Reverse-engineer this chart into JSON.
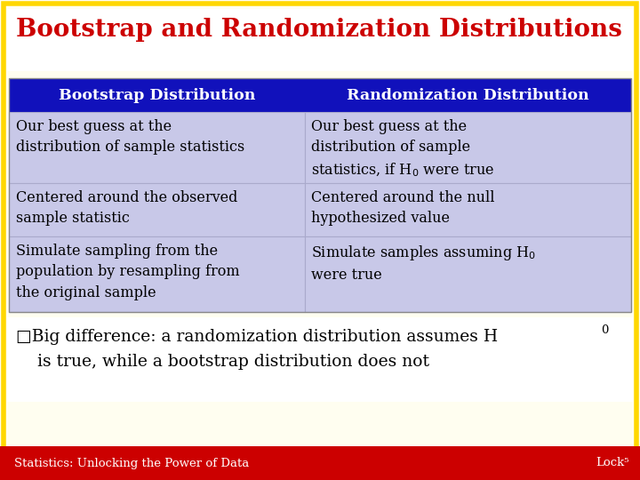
{
  "title": "Bootstrap and Randomization Distributions",
  "title_color": "#CC0000",
  "title_fontsize": 20,
  "bg_color": "#FFFEF0",
  "outer_border_color": "#FFD700",
  "header_bg": "#1111BB",
  "header_text_color": "#FFFFFF",
  "header_fontsize": 12.5,
  "cell_bg": "#C8C8E8",
  "cell_text_color": "#000000",
  "cell_fontsize": 11.5,
  "col1_header": "Bootstrap Distribution",
  "col2_header": "Randomization Distribution",
  "rows": [
    [
      "Our best guess at the\ndistribution of sample statistics",
      "Our best guess at the\ndistribution of sample\nstatistics, if H$_0$ were true"
    ],
    [
      "Centered around the observed\nsample statistic",
      "Centered around the null\nhypothesized value"
    ],
    [
      "Simulate sampling from the\npopulation by resampling from\nthe original sample",
      "Simulate samples assuming H$_0$\nwere true"
    ]
  ],
  "bullet_line1": "□Big difference: a randomization distribution assumes H",
  "bullet_sub": "0",
  "bullet_line2": "    is true, while a bootstrap distribution does not",
  "bullet_fontsize": 13.5,
  "footer_bg": "#CC0000",
  "footer_text_color": "#FFFFFF",
  "footer_left": "Statistics: Unlocking the Power of Data",
  "footer_right": "Lock⁵",
  "footer_fontsize": 9.5,
  "col_split": 0.475
}
